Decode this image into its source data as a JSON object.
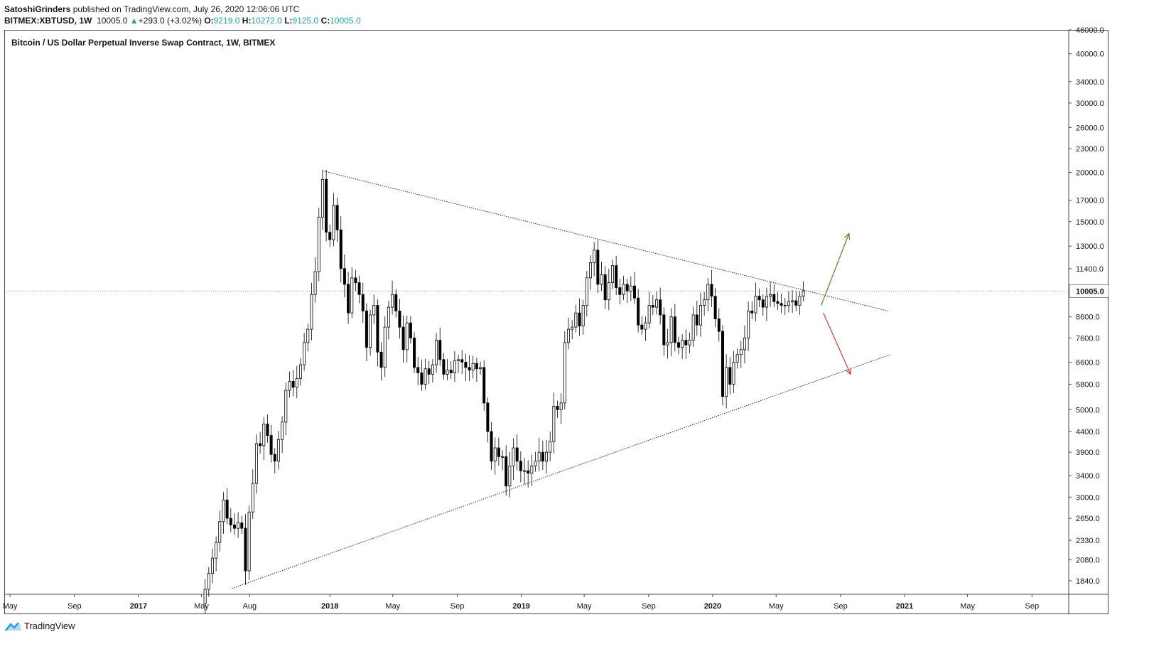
{
  "header": {
    "author": "SatoshiGrinders",
    "published": "published on TradingView.com, July 26, 2020 12:06:06 UTC",
    "symbol": "BITMEX:XBTUSD, 1W",
    "last": "10005.0",
    "change": "+293.0 (+3.02%)",
    "o_label": "O:",
    "o_val": "9219.0",
    "h_label": "H:",
    "h_val": "10272.0",
    "l_label": "L:",
    "l_val": "9125.0",
    "c_label": "C:",
    "c_val": "10005.0"
  },
  "brand": {
    "name": "TradingView",
    "logo_icon": "tradingview-logo-icon"
  },
  "colors": {
    "up": "#26a69a",
    "candle": "#000000",
    "green_arrow": "#4f8a2a",
    "red_arrow": "#e53935",
    "price_tag": "#ffffff"
  },
  "chart_data": {
    "type": "candlestick",
    "title": "Bitcoin / US Dollar Perpetual Inverse Swap Contract, 1W, BITMEX",
    "y_scale": "log",
    "ylim": [
      1700,
      46000
    ],
    "xlim": [
      "2016-04-20",
      "2021-11-10"
    ],
    "y_ticks": [
      "46000.0",
      "40000.0",
      "34000.0",
      "30000.0",
      "26000.0",
      "23000.0",
      "20000.0",
      "17000.0",
      "15000.0",
      "13000.0",
      "11400.0",
      "10005.0",
      "8600.0",
      "7600.0",
      "6600.0",
      "5800.0",
      "5000.0",
      "4400.0",
      "3900.0",
      "3400.0",
      "3000.0",
      "2650.0",
      "2330.0",
      "2080.0",
      "1840.0"
    ],
    "y_tick_values": [
      46000,
      40000,
      34000,
      30000,
      26000,
      23000,
      20000,
      17000,
      15000,
      13000,
      11400,
      10005,
      8600,
      7600,
      6600,
      5800,
      5000,
      4400,
      3900,
      3400,
      3000,
      2650,
      2330,
      2080,
      1840
    ],
    "last_price": {
      "value": 10005,
      "label": "10005.0"
    },
    "x_ticks": [
      {
        "date": "2016-05-01",
        "label": "May",
        "bold": false
      },
      {
        "date": "2016-09-01",
        "label": "Sep",
        "bold": false
      },
      {
        "date": "2017-01-01",
        "label": "2017",
        "bold": true
      },
      {
        "date": "2017-05-01",
        "label": "May",
        "bold": false
      },
      {
        "date": "2017-08-01",
        "label": "Aug",
        "bold": false
      },
      {
        "date": "2018-01-01",
        "label": "2018",
        "bold": true
      },
      {
        "date": "2018-05-01",
        "label": "May",
        "bold": false
      },
      {
        "date": "2018-09-01",
        "label": "Sep",
        "bold": false
      },
      {
        "date": "2019-01-01",
        "label": "2019",
        "bold": true
      },
      {
        "date": "2019-05-01",
        "label": "May",
        "bold": false
      },
      {
        "date": "2019-09-01",
        "label": "Sep",
        "bold": false
      },
      {
        "date": "2020-01-01",
        "label": "2020",
        "bold": true
      },
      {
        "date": "2020-05-01",
        "label": "May",
        "bold": false
      },
      {
        "date": "2020-09-01",
        "label": "Sep",
        "bold": false
      },
      {
        "date": "2021-01-01",
        "label": "2021",
        "bold": true
      },
      {
        "date": "2021-05-01",
        "label": "May",
        "bold": false
      },
      {
        "date": "2021-09-01",
        "label": "Sep",
        "bold": false
      }
    ],
    "start_date": "2017-05-08",
    "candle_interval_days": 7,
    "closes": [
      1750,
      1920,
      2100,
      2300,
      2600,
      2950,
      2650,
      2550,
      2500,
      2580,
      2500,
      1950,
      2750,
      3250,
      4100,
      4050,
      4600,
      4300,
      3850,
      3700,
      4200,
      4650,
      5600,
      5900,
      5700,
      6000,
      6500,
      7400,
      8000,
      9800,
      11200,
      15400,
      19200,
      14100,
      13500,
      16500,
      14300,
      11400,
      10400,
      8800,
      10800,
      10500,
      9800,
      8900,
      7200,
      8700,
      9200,
      7000,
      6400,
      8100,
      9100,
      9800,
      8900,
      8100,
      7100,
      8300,
      7600,
      6400,
      6200,
      5800,
      6350,
      6150,
      6500,
      7500,
      6700,
      6150,
      6300,
      6200,
      6650,
      6700,
      6600,
      6400,
      6300,
      6550,
      6350,
      6400,
      5200,
      4400,
      3700,
      4000,
      3800,
      3800,
      3200,
      3600,
      4000,
      3700,
      3500,
      3500,
      3450,
      3600,
      3700,
      3900,
      3700,
      3900,
      4150,
      5100,
      5000,
      5200,
      7400,
      8000,
      8100,
      8800,
      8150,
      9200,
      10800,
      11800,
      12700,
      10400,
      11000,
      9500,
      10500,
      11600,
      10200,
      9800,
      10400,
      10000,
      10300,
      9600,
      8200,
      8000,
      8300,
      9200,
      9100,
      9500,
      8700,
      7300,
      7400,
      8600,
      7400,
      7200,
      7500,
      7300,
      7500,
      8700,
      8200,
      9200,
      9500,
      10400,
      9700,
      8500,
      7900,
      5400,
      6400,
      5800,
      6600,
      6900,
      7100,
      7600,
      8900,
      8800,
      9700,
      9500,
      9100,
      9700,
      9800,
      9400,
      9300,
      9200,
      9200,
      9400,
      9450,
      9200,
      9700,
      10005
    ],
    "trendlines": [
      {
        "name": "upper-resistance",
        "from": {
          "date": "2017-12-17",
          "value": 20200
        },
        "to": {
          "date": "2020-11-30",
          "value": 8900
        }
      },
      {
        "name": "lower-support",
        "from": {
          "date": "2017-06-28",
          "value": 1760
        },
        "to": {
          "date": "2020-12-05",
          "value": 6900
        }
      }
    ],
    "arrows": [
      {
        "name": "bullish-arrow",
        "from": {
          "date": "2020-07-26",
          "value": 9200
        },
        "to": {
          "date": "2020-09-17",
          "value": 14000
        }
      },
      {
        "name": "bearish-arrow",
        "from": {
          "date": "2020-07-30",
          "value": 8800
        },
        "to": {
          "date": "2020-09-20",
          "value": 6150
        }
      }
    ]
  }
}
